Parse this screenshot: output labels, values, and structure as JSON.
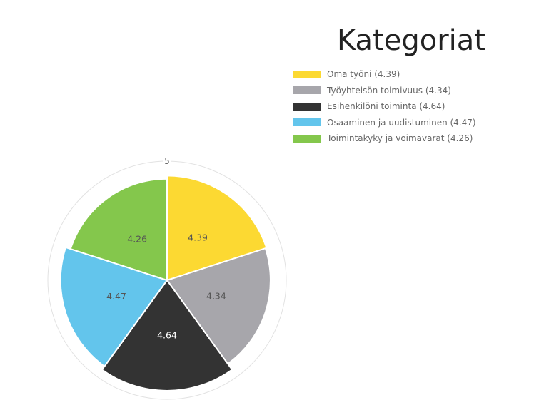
{
  "chart_data": {
    "type": "polarArea",
    "title": "Kategoriat",
    "legend_position": "top-right",
    "scale": {
      "min": 0,
      "max": 5,
      "max_tick_label": "5"
    },
    "categories": [
      "Oma työni",
      "Työyhteisön toimivuus",
      "Esihenkilöni toiminta",
      "Osaaminen ja uudistuminen",
      "Toimintakyky ja voimavarat"
    ],
    "values": [
      4.39,
      4.34,
      4.64,
      4.47,
      4.26
    ],
    "value_labels": [
      "4.39",
      "4.34",
      "4.64",
      "4.47",
      "4.26"
    ],
    "legend_labels": [
      "Oma työni (4.39)",
      "Työyhteisön toimivuus (4.34)",
      "Esihenkilöni toiminta (4.64)",
      "Osaaminen ja uudistuminen (4.47)",
      "Toimintakyky ja voimavarat (4.26)"
    ],
    "colors": [
      "#fcd932",
      "#a7a6ab",
      "#333333",
      "#63c5ec",
      "#84c74c"
    ],
    "label_colors": [
      "#555555",
      "#555555",
      "#ffffff",
      "#555555",
      "#555555"
    ],
    "grid": true
  }
}
